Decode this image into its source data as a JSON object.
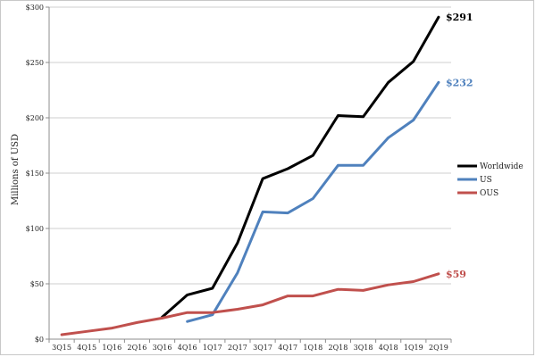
{
  "chart_data": {
    "type": "line",
    "title": "",
    "xlabel": "",
    "ylabel": "Millions of USD",
    "ylim": [
      0,
      300
    ],
    "yticks": [
      0,
      50,
      100,
      150,
      200,
      250,
      300
    ],
    "ytick_labels": [
      "$0",
      "$50",
      "$100",
      "$150",
      "$200",
      "$250",
      "$300"
    ],
    "categories": [
      "3Q15",
      "4Q15",
      "1Q16",
      "2Q16",
      "3Q16",
      "4Q16",
      "1Q17",
      "2Q17",
      "3Q17",
      "4Q17",
      "1Q18",
      "2Q18",
      "3Q18",
      "4Q18",
      "1Q19",
      "2Q19"
    ],
    "grid": "horizontal",
    "legend_position": "right",
    "series": [
      {
        "name": "Worldwide",
        "color": "#000000",
        "values": [
          null,
          null,
          null,
          null,
          20,
          40,
          46,
          87,
          145,
          154,
          166,
          202,
          201,
          232,
          251,
          291
        ],
        "end_label": "$291"
      },
      {
        "name": "US",
        "color": "#4f81bd",
        "values": [
          null,
          null,
          null,
          null,
          null,
          16,
          22,
          60,
          115,
          114,
          127,
          157,
          157,
          182,
          198,
          232
        ],
        "end_label": "$232"
      },
      {
        "name": "OUS",
        "color": "#c0504d",
        "values": [
          4,
          7,
          10,
          15,
          19,
          24,
          24,
          27,
          31,
          39,
          39,
          45,
          44,
          49,
          52,
          59
        ],
        "end_label": "$59"
      }
    ]
  }
}
